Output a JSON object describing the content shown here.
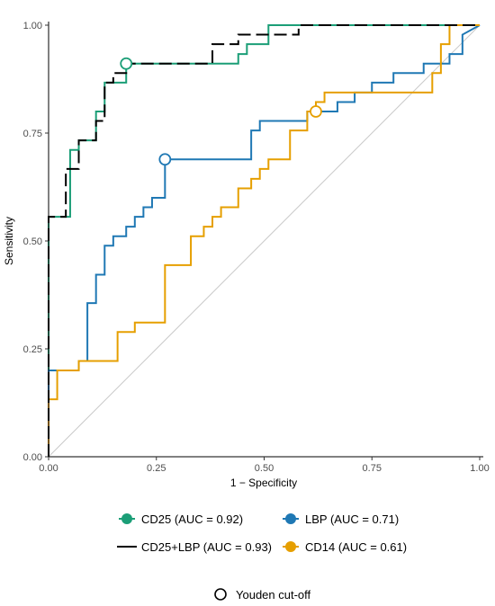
{
  "chart_data": {
    "type": "line",
    "xlabel": "1 − Specificity",
    "ylabel": "Sensitivity",
    "xlim": [
      0,
      1
    ],
    "ylim": [
      0,
      1
    ],
    "x_ticks": [
      "0.00",
      "0.25",
      "0.50",
      "0.75",
      "1.00"
    ],
    "y_ticks": [
      "0.00",
      "0.25",
      "0.50",
      "0.75",
      "1.00"
    ],
    "grid": false,
    "diagonal_reference": true,
    "legend_position": "bottom",
    "series": [
      {
        "name": "CD25 (AUC = 0.92)",
        "color": "#1b9e77",
        "dash": "solid",
        "x": [
          0,
          0,
          0.05,
          0.05,
          0.07,
          0.07,
          0.11,
          0.11,
          0.13,
          0.13,
          0.18,
          0.18,
          0.44,
          0.44,
          0.46,
          0.46,
          0.51,
          0.51,
          1.0
        ],
        "y": [
          0,
          0.556,
          0.556,
          0.711,
          0.711,
          0.733,
          0.733,
          0.8,
          0.8,
          0.867,
          0.867,
          0.911,
          0.911,
          0.933,
          0.933,
          0.956,
          0.956,
          1.0,
          1.0
        ],
        "cutoff": {
          "x": 0.18,
          "y": 0.911
        }
      },
      {
        "name": "LBP (AUC = 0.71)",
        "color": "#1f78b4",
        "dash": "solid",
        "x": [
          0,
          0,
          0.07,
          0.07,
          0.09,
          0.09,
          0.11,
          0.11,
          0.13,
          0.13,
          0.15,
          0.15,
          0.18,
          0.18,
          0.2,
          0.2,
          0.22,
          0.22,
          0.24,
          0.24,
          0.27,
          0.27,
          0.47,
          0.47,
          0.49,
          0.49,
          0.6,
          0.6,
          0.62,
          0.62,
          0.67,
          0.67,
          0.71,
          0.71,
          0.75,
          0.75,
          0.8,
          0.8,
          0.87,
          0.87,
          0.93,
          0.93,
          0.96,
          0.96,
          1.0
        ],
        "y": [
          0,
          0.2,
          0.2,
          0.222,
          0.222,
          0.356,
          0.356,
          0.422,
          0.422,
          0.489,
          0.489,
          0.511,
          0.511,
          0.533,
          0.533,
          0.556,
          0.556,
          0.578,
          0.578,
          0.6,
          0.6,
          0.689,
          0.689,
          0.756,
          0.756,
          0.778,
          0.778,
          0.8,
          0.8,
          0.8,
          0.8,
          0.822,
          0.822,
          0.844,
          0.844,
          0.867,
          0.867,
          0.889,
          0.889,
          0.911,
          0.911,
          0.933,
          0.933,
          0.978,
          1.0
        ],
        "cutoff": {
          "x": 0.27,
          "y": 0.689
        }
      },
      {
        "name": "CD25+LBP (AUC = 0.93)",
        "color": "#000000",
        "dash": "dashed",
        "x": [
          0,
          0,
          0.04,
          0.04,
          0.07,
          0.07,
          0.11,
          0.11,
          0.13,
          0.13,
          0.15,
          0.15,
          0.18,
          0.18,
          0.38,
          0.38,
          0.44,
          0.44,
          0.51,
          0.51,
          0.58,
          0.58,
          1.0
        ],
        "y": [
          0,
          0.556,
          0.556,
          0.667,
          0.667,
          0.733,
          0.733,
          0.778,
          0.778,
          0.867,
          0.867,
          0.889,
          0.889,
          0.911,
          0.911,
          0.956,
          0.956,
          0.978,
          0.978,
          0.978,
          0.978,
          1.0,
          1.0
        ]
      },
      {
        "name": "CD14 (AUC = 0.61)",
        "color": "#e69f00",
        "dash": "solid",
        "x": [
          0,
          0,
          0.02,
          0.02,
          0.07,
          0.07,
          0.16,
          0.16,
          0.2,
          0.2,
          0.27,
          0.27,
          0.33,
          0.33,
          0.36,
          0.36,
          0.38,
          0.38,
          0.4,
          0.4,
          0.44,
          0.44,
          0.47,
          0.47,
          0.49,
          0.49,
          0.51,
          0.51,
          0.56,
          0.56,
          0.6,
          0.6,
          0.62,
          0.62,
          0.64,
          0.64,
          0.69,
          0.69,
          0.89,
          0.89,
          0.91,
          0.91,
          0.93,
          0.93,
          0.98,
          1.0
        ],
        "y": [
          0,
          0.133,
          0.133,
          0.2,
          0.2,
          0.222,
          0.222,
          0.289,
          0.289,
          0.311,
          0.311,
          0.444,
          0.444,
          0.511,
          0.511,
          0.533,
          0.533,
          0.556,
          0.556,
          0.578,
          0.578,
          0.622,
          0.622,
          0.644,
          0.644,
          0.667,
          0.667,
          0.689,
          0.689,
          0.756,
          0.756,
          0.8,
          0.8,
          0.822,
          0.822,
          0.844,
          0.844,
          0.844,
          0.844,
          0.889,
          0.889,
          0.956,
          0.956,
          1.0,
          1.0,
          1.0
        ],
        "cutoff": {
          "x": 0.62,
          "y": 0.8
        }
      }
    ],
    "cutoff_legend": "Youden cut-off"
  }
}
